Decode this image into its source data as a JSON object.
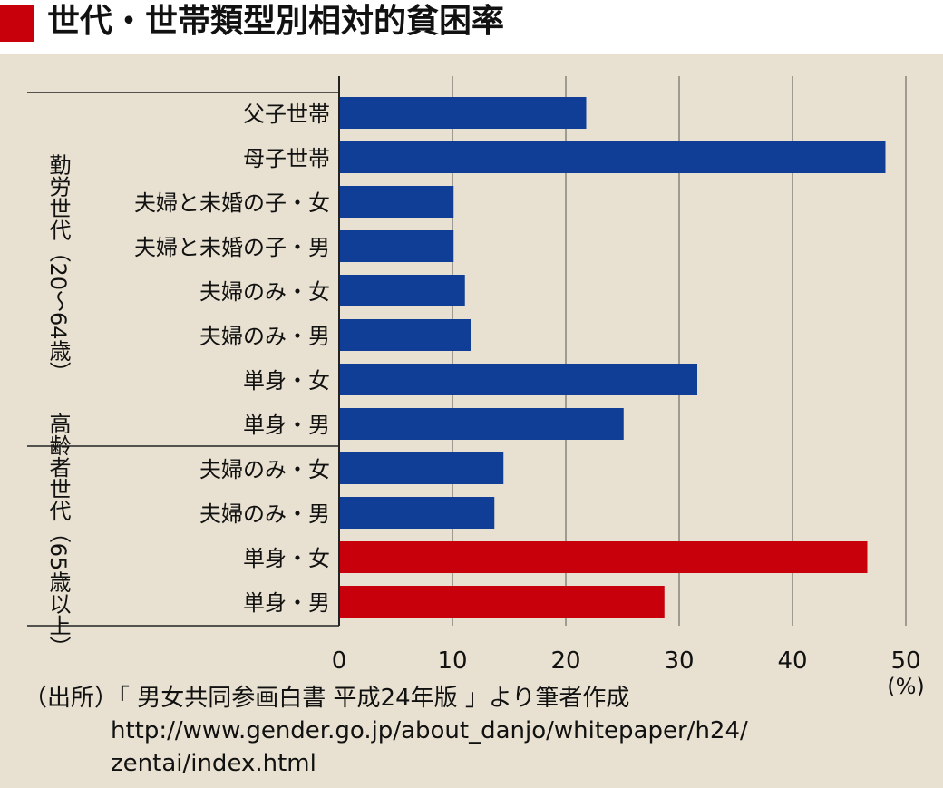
{
  "title": "世代・世帯類型別相対的貧困率",
  "chart_data": {
    "type": "bar",
    "orientation": "horizontal",
    "categories": [
      "父子世帯",
      "母子世帯",
      "夫婦と未婚の子・女",
      "夫婦と未婚の子・男",
      "夫婦のみ・女",
      "夫婦のみ・男",
      "単身・女",
      "単身・男",
      "夫婦のみ・女",
      "夫婦のみ・男",
      "単身・女",
      "単身・男"
    ],
    "values": [
      21.8,
      48.2,
      10.1,
      10.1,
      11.1,
      11.6,
      31.6,
      25.1,
      14.5,
      13.7,
      46.6,
      28.7
    ],
    "bar_colors": [
      "#103d96",
      "#103d96",
      "#103d96",
      "#103d96",
      "#103d96",
      "#103d96",
      "#103d96",
      "#103d96",
      "#103d96",
      "#103d96",
      "#c8000b",
      "#c8000b"
    ],
    "groups": [
      {
        "label": "勤労世代（20〜64歳）",
        "start": 0,
        "end": 7
      },
      {
        "label": "高齢者世代（65歳以上）",
        "start": 8,
        "end": 11
      }
    ],
    "xticks": [
      0,
      10,
      20,
      30,
      40,
      50
    ],
    "xlim": [
      0,
      50
    ],
    "xunit": "(%)",
    "grid": true
  },
  "source": {
    "line1": "（出所）「 男女共同参画白書  平成24年版 」より筆者作成",
    "line2": "http://www.gender.go.jp/about_danjo/whitepaper/h24/",
    "line3": "zentai/index.html"
  },
  "colors": {
    "accent": "#c8000b",
    "bar_blue": "#103d96",
    "panel_bg": "#e8e1d1"
  }
}
